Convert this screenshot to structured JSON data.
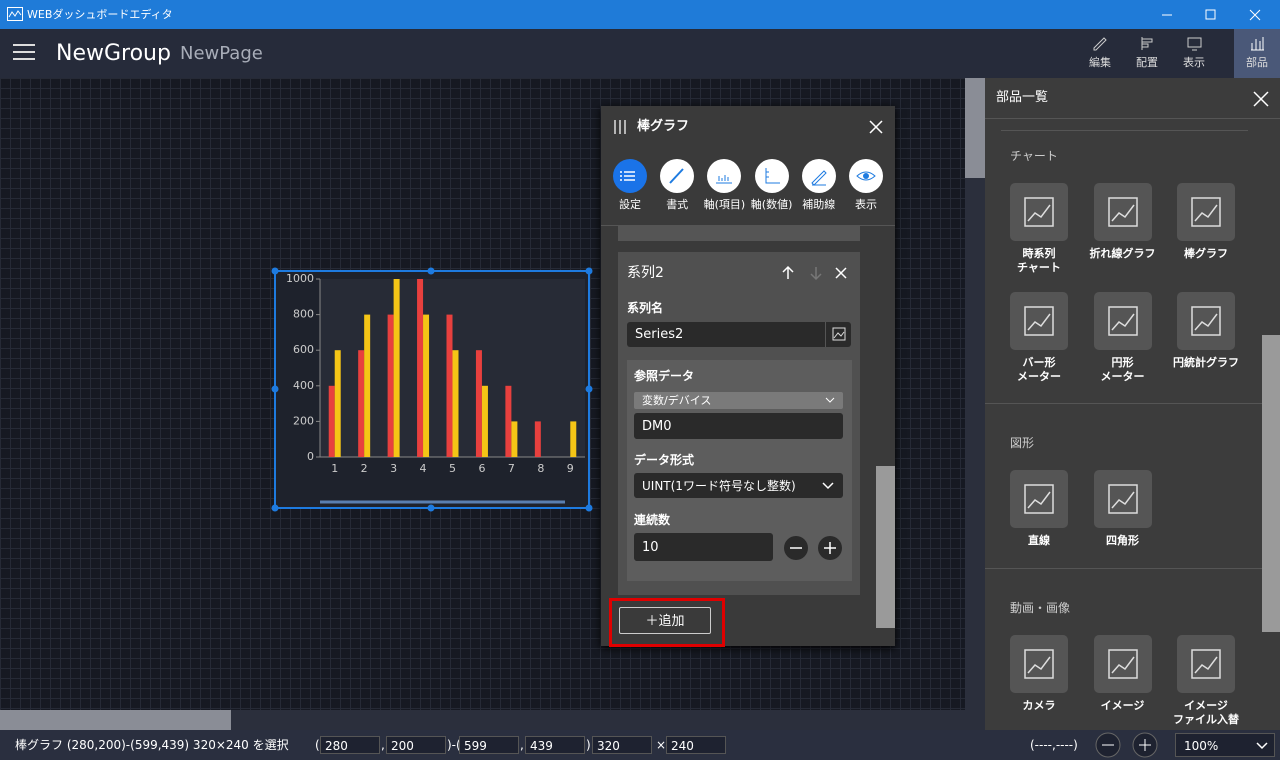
{
  "window": {
    "title": "WEBダッシュボードエディタ"
  },
  "header": {
    "group": "NewGroup",
    "page": "NewPage",
    "tools": [
      "編集",
      "配置",
      "表示",
      "部品"
    ]
  },
  "canvas_chart": {
    "type": "bar",
    "categories": [
      "1",
      "2",
      "3",
      "4",
      "5",
      "6",
      "7",
      "8",
      "9"
    ],
    "series": [
      {
        "color": "#e8403e",
        "values": [
          400,
          600,
          800,
          1000,
          800,
          600,
          400,
          200,
          0
        ]
      },
      {
        "color": "#f5c516",
        "values": [
          600,
          800,
          1000,
          800,
          600,
          400,
          200,
          0,
          200
        ]
      }
    ],
    "ylim": [
      0,
      1000
    ],
    "yticks": [
      0,
      200,
      400,
      600,
      800,
      1000
    ]
  },
  "dialog": {
    "title": "棒グラフ",
    "tabs": [
      "設定",
      "書式",
      "軸(項目)",
      "軸(数値)",
      "補助線",
      "表示"
    ],
    "series_card": {
      "title": "系列2",
      "name_label": "系列名",
      "name_value": "Series2",
      "ref_label": "参照データ",
      "ref_type": "変数/デバイス",
      "ref_value": "DM0",
      "format_label": "データ形式",
      "format_value": "UINT(1ワード符号なし整数)",
      "count_label": "連続数",
      "count_value": "10"
    },
    "add_button": "＋追加"
  },
  "parts_panel": {
    "title": "部品一覧",
    "sections": [
      {
        "title": "チャート",
        "items": [
          [
            "時系列",
            "チャート"
          ],
          [
            "折れ線グラフ"
          ],
          [
            "棒グラフ"
          ],
          [
            "バー形",
            "メーター"
          ],
          [
            "円形",
            "メーター"
          ],
          [
            "円統計グラフ"
          ]
        ]
      },
      {
        "title": "図形",
        "items": [
          [
            "直線"
          ],
          [
            "四角形"
          ]
        ]
      },
      {
        "title": "動画・画像",
        "items": [
          [
            "カメラ"
          ],
          [
            "イメージ"
          ],
          [
            "イメージ",
            "ファイル入替"
          ]
        ]
      }
    ]
  },
  "status": {
    "text": "棒グラフ (280,200)-(599,439) 320×240 を選択",
    "open": "(",
    "x1": "280",
    "comma1": ",",
    "y1": "200",
    "mid": ")-(",
    "x2": "599",
    "comma2": ",",
    "y2": "439",
    "close": ")",
    "w": "320",
    "times": "×",
    "h": "240",
    "cursor": "(----,----)",
    "zoom": "100%"
  }
}
